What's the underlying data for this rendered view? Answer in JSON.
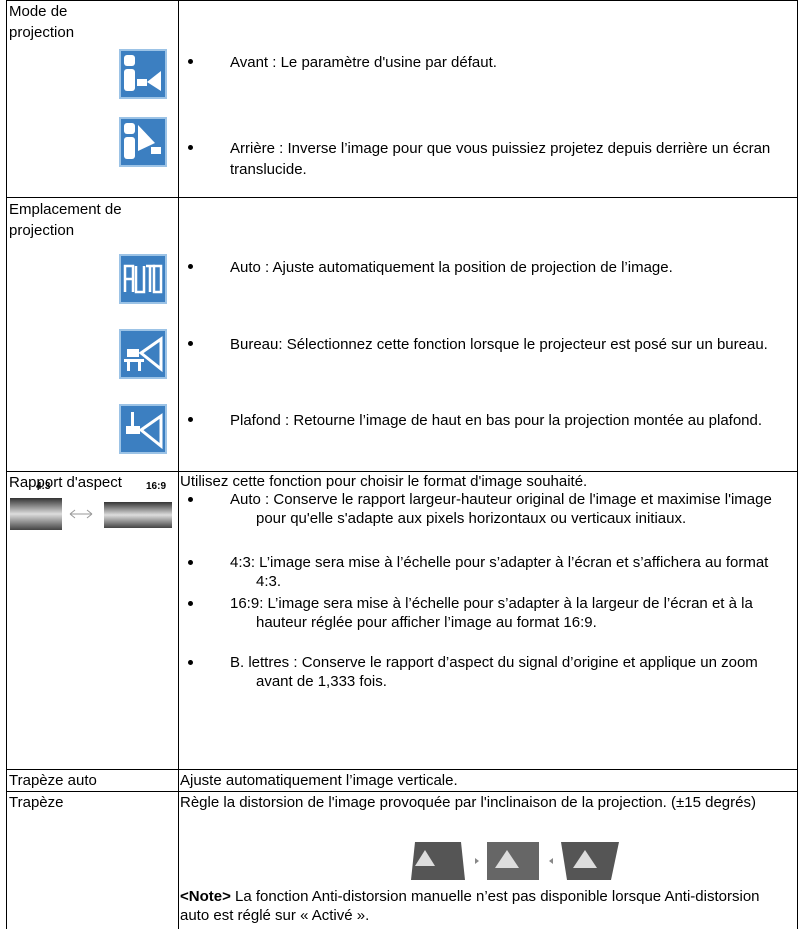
{
  "rows": [
    {
      "label": "Mode de projection",
      "items": [
        "Avant : Le paramètre d'usine par défaut.",
        "Arrière : Inverse l’image pour que vous puissiez projetez depuis derrière un écran translucide."
      ]
    },
    {
      "label": "Emplacement de projection",
      "items": [
        "Auto : Ajuste automatiquement la position de projection de l’image.",
        "Bureau: Sélectionnez cette fonction lorsque le projecteur est posé sur un bureau.",
        "Plafond : Retourne l’image de haut en bas pour la projection montée au plafond."
      ]
    },
    {
      "label": "Rapport d'aspect",
      "intro": "Utilisez cette fonction pour choisir le format d'image souhaité.",
      "image_labels": [
        "4:3",
        "16:9"
      ],
      "items": [
        "Auto : Conserve le rapport largeur-hauteur original de l'image et maximise l'image pour qu'elle s'adapte aux pixels horizontaux ou verticaux initiaux.",
        "4:3: L’image sera mise à l’échelle pour s’adapter à l’écran et s’affichera au format 4:3.",
        "16:9: L’image sera mise à l’échelle pour s’adapter à la largeur de l’écran et à la hauteur réglée pour afficher l’image au format 16:9.",
        "B. lettres : Conserve le rapport d’aspect du signal d’origine et applique un zoom avant de 1,333 fois."
      ]
    },
    {
      "label": "Trapèze auto",
      "text": "Ajuste automatiquement l’image verticale."
    },
    {
      "label": "Trapèze",
      "text": "Règle la distorsion de l'image provoquée par l'inclinaison de la projection. (±15 degrés)",
      "note_label": "<Note>",
      "note": "La fonction Anti-distorsion manuelle n’est pas disponible lorsque Anti-distorsion auto est réglé sur « Activé »."
    }
  ]
}
